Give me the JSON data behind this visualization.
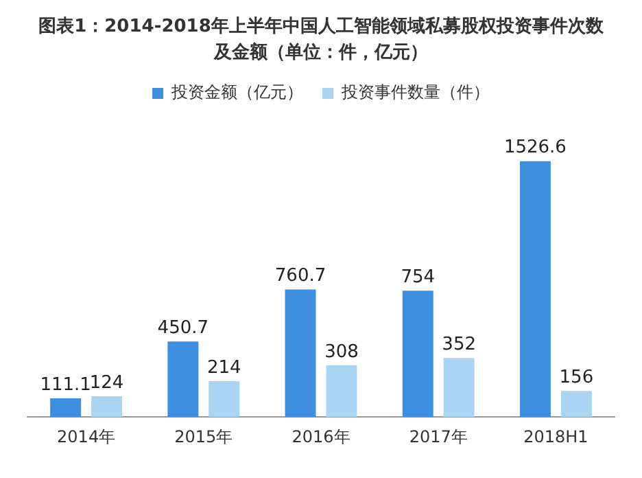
{
  "chart_data": {
    "type": "bar",
    "title": "图表1：2014-2018年上半年中国人工智能领域私募股权投资事件次数及金额（单位：件，亿元）",
    "categories": [
      "2014年",
      "2015年",
      "2016年",
      "2017年",
      "2018H1"
    ],
    "series": [
      {
        "name": "投资金额（亿元）",
        "color": "#3d8fe0",
        "values": [
          111.1,
          450.7,
          760.7,
          754,
          1526.6
        ]
      },
      {
        "name": "投资事件数量（件）",
        "color": "#a9d5f2",
        "values": [
          124,
          214,
          308,
          352,
          156
        ]
      }
    ],
    "data_labels": true,
    "legend": "top",
    "grid": false
  }
}
